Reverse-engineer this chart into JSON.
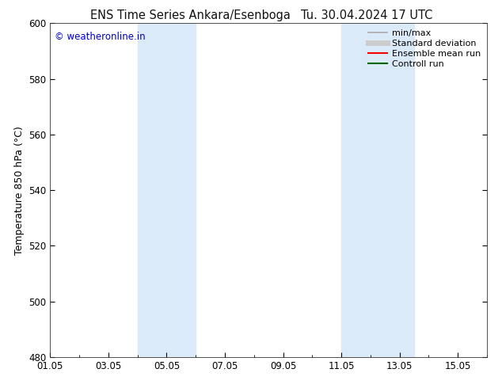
{
  "title_left": "ENS Time Series Ankara/Esenboga",
  "title_right": "Tu. 30.04.2024 17 UTC",
  "ylabel": "Temperature 850 hPa (°C)",
  "watermark": "© weatheronline.in",
  "watermark_color": "#0000cc",
  "ylim": [
    480,
    600
  ],
  "yticks": [
    480,
    500,
    520,
    540,
    560,
    580,
    600
  ],
  "xlim_start": 0,
  "xlim_end": 15,
  "xtick_labels": [
    "01.05",
    "03.05",
    "05.05",
    "07.05",
    "09.05",
    "11.05",
    "13.05",
    "15.05"
  ],
  "xtick_positions": [
    0,
    2,
    4,
    6,
    8,
    10,
    12,
    14
  ],
  "shaded_bands": [
    {
      "x_start": 3.0,
      "x_end": 5.0
    },
    {
      "x_start": 10.0,
      "x_end": 12.5
    }
  ],
  "shade_color": "#daeaf8",
  "background_color": "#ffffff",
  "legend_items": [
    {
      "label": "min/max",
      "color": "#aaaaaa",
      "lw": 1.2
    },
    {
      "label": "Standard deviation",
      "color": "#cccccc",
      "lw": 5
    },
    {
      "label": "Ensemble mean run",
      "color": "#ff0000",
      "lw": 1.5
    },
    {
      "label": "Controll run",
      "color": "#006400",
      "lw": 1.5
    }
  ],
  "title_fontsize": 10.5,
  "ylabel_fontsize": 9,
  "tick_fontsize": 8.5,
  "legend_fontsize": 8
}
